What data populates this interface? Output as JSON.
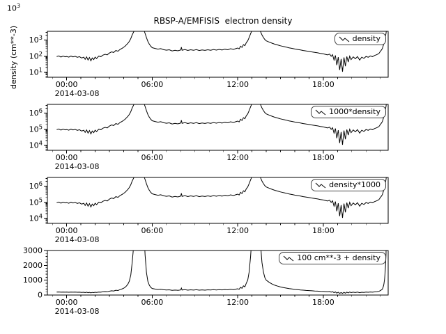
{
  "stray_label": {
    "base": "10",
    "exp": "3"
  },
  "colors": {
    "background": "#ffffff",
    "line": "#000000",
    "frame": "#000000"
  },
  "chart_data": {
    "type": "line",
    "title": "RBSP-A/EMFISIS  electron density",
    "x_date": "2014-03-08",
    "x_range": [
      -1.35,
      22.55
    ],
    "x_ticks": [
      {
        "value": 0,
        "label": "00:00"
      },
      {
        "value": 6,
        "label": "06:00"
      },
      {
        "value": 12,
        "label": "12:00"
      },
      {
        "value": 18,
        "label": "18:00"
      }
    ],
    "panels": [
      {
        "series_name": "density-line",
        "legend": "density",
        "y_label": "density (cm**-3)",
        "scale": "log",
        "y_min": 5,
        "y_max": 3500,
        "mul": 1,
        "add": 0,
        "y_ticks": [
          {
            "value": 10,
            "label": "10^1"
          },
          {
            "value": 100,
            "label": "10^2"
          },
          {
            "value": 1000,
            "label": "10^3"
          }
        ]
      },
      {
        "series_name": "1000-times-density-line",
        "legend": "1000*density",
        "scale": "log",
        "y_min": 5000,
        "y_max": 3500000,
        "mul": 1000,
        "add": 0,
        "y_ticks": [
          {
            "value": 10000,
            "label": "10^4"
          },
          {
            "value": 100000,
            "label": "10^5"
          },
          {
            "value": 1000000,
            "label": "10^6"
          }
        ]
      },
      {
        "series_name": "density-times-1000-line",
        "legend": "density*1000",
        "scale": "log",
        "y_min": 5000,
        "y_max": 3500000,
        "mul": 1000,
        "add": 0,
        "y_ticks": [
          {
            "value": 10000,
            "label": "10^4"
          },
          {
            "value": 100000,
            "label": "10^5"
          },
          {
            "value": 1000000,
            "label": "10^6"
          }
        ]
      },
      {
        "series_name": "100-plus-density-line",
        "legend": "100 cm**-3 + density",
        "scale": "linear",
        "y_min": 0,
        "y_max": 3000,
        "mul": 1,
        "add": 100,
        "y_minor": 200,
        "y_ticks": [
          {
            "value": 0,
            "label": "0"
          },
          {
            "value": 1000,
            "label": "1000"
          },
          {
            "value": 2000,
            "label": "2000"
          },
          {
            "value": 3000,
            "label": "3000"
          }
        ]
      }
    ],
    "series": {
      "x": [
        -0.7,
        -0.55,
        -0.4,
        -0.25,
        -0.1,
        0,
        0.15,
        0.3,
        0.45,
        0.6,
        0.75,
        0.9,
        1.05,
        1.2,
        1.3,
        1.4,
        1.5,
        1.6,
        1.7,
        1.8,
        1.9,
        2,
        2.1,
        2.25,
        2.4,
        2.55,
        2.7,
        2.85,
        3,
        3.15,
        3.3,
        3.45,
        3.6,
        3.75,
        3.9,
        4,
        4.1,
        4.2,
        4.3,
        4.4,
        4.5,
        4.6,
        4.7,
        4.8,
        4.9,
        5,
        5.1,
        5.2,
        5.3,
        5.4,
        5.5,
        5.6,
        5.7,
        5.8,
        5.9,
        6,
        6.2,
        6.4,
        6.6,
        6.8,
        7,
        7.2,
        7.4,
        7.6,
        7.8,
        8,
        8.05,
        8.1,
        8.3,
        8.5,
        8.7,
        8.9,
        9.1,
        9.3,
        9.5,
        9.7,
        9.9,
        10.1,
        10.3,
        10.5,
        10.7,
        10.9,
        11.1,
        11.3,
        11.5,
        11.7,
        11.9,
        12,
        12.1,
        12.2,
        12.3,
        12.4,
        12.5,
        12.6,
        12.7,
        12.8,
        12.9,
        13,
        13.1,
        13.2,
        13.3,
        13.4,
        13.5,
        13.6,
        13.7,
        13.8,
        13.9,
        14,
        14.2,
        14.4,
        14.6,
        14.8,
        15,
        15.2,
        15.4,
        15.6,
        15.8,
        16,
        16.2,
        16.4,
        16.6,
        16.8,
        17,
        17.2,
        17.4,
        17.6,
        17.8,
        18,
        18.15,
        18.3,
        18.45,
        18.55,
        18.65,
        18.75,
        18.85,
        18.95,
        19.05,
        19.15,
        19.25,
        19.35,
        19.45,
        19.55,
        19.65,
        19.75,
        19.85,
        19.95,
        20.1,
        20.25,
        20.4,
        20.55,
        20.7,
        20.85,
        21,
        21.15,
        21.3,
        21.45,
        21.6,
        21.75,
        21.9,
        22,
        22.1,
        22.15,
        22.2,
        22.25,
        22.3,
        22.35,
        22.4,
        22.45
      ],
      "density": [
        95,
        104,
        90,
        101,
        93,
        96,
        88,
        102,
        92,
        99,
        86,
        94,
        78,
        88,
        64,
        92,
        58,
        84,
        52,
        78,
        62,
        88,
        72,
        102,
        94,
        118,
        132,
        122,
        158,
        188,
        172,
        225,
        205,
        265,
        315,
        360,
        420,
        520,
        640,
        840,
        1250,
        2100,
        3200,
        4400,
        3800,
        5400,
        6200,
        5300,
        6100,
        4600,
        2600,
        1400,
        820,
        560,
        420,
        340,
        305,
        275,
        295,
        255,
        238,
        252,
        214,
        232,
        218,
        242,
        365,
        236,
        262,
        228,
        252,
        232,
        256,
        226,
        248,
        230,
        252,
        236,
        262,
        240,
        266,
        246,
        272,
        252,
        292,
        266,
        305,
        322,
        288,
        420,
        355,
        520,
        455,
        690,
        910,
        1450,
        2500,
        3900,
        5300,
        6100,
        5400,
        6200,
        4900,
        3300,
        2100,
        1450,
        1080,
        900,
        760,
        645,
        560,
        498,
        445,
        402,
        368,
        332,
        308,
        282,
        262,
        244,
        226,
        210,
        198,
        186,
        174,
        163,
        150,
        140,
        131,
        121,
        136,
        99,
        126,
        58,
        112,
        28,
        88,
        14,
        68,
        11,
        84,
        24,
        96,
        44,
        101,
        62,
        92,
        70,
        95,
        58,
        88,
        74,
        97,
        86,
        104,
        94,
        112,
        125,
        148,
        195,
        260,
        310,
        430,
        640,
        980,
        1600,
        2600,
        5500
      ]
    }
  }
}
